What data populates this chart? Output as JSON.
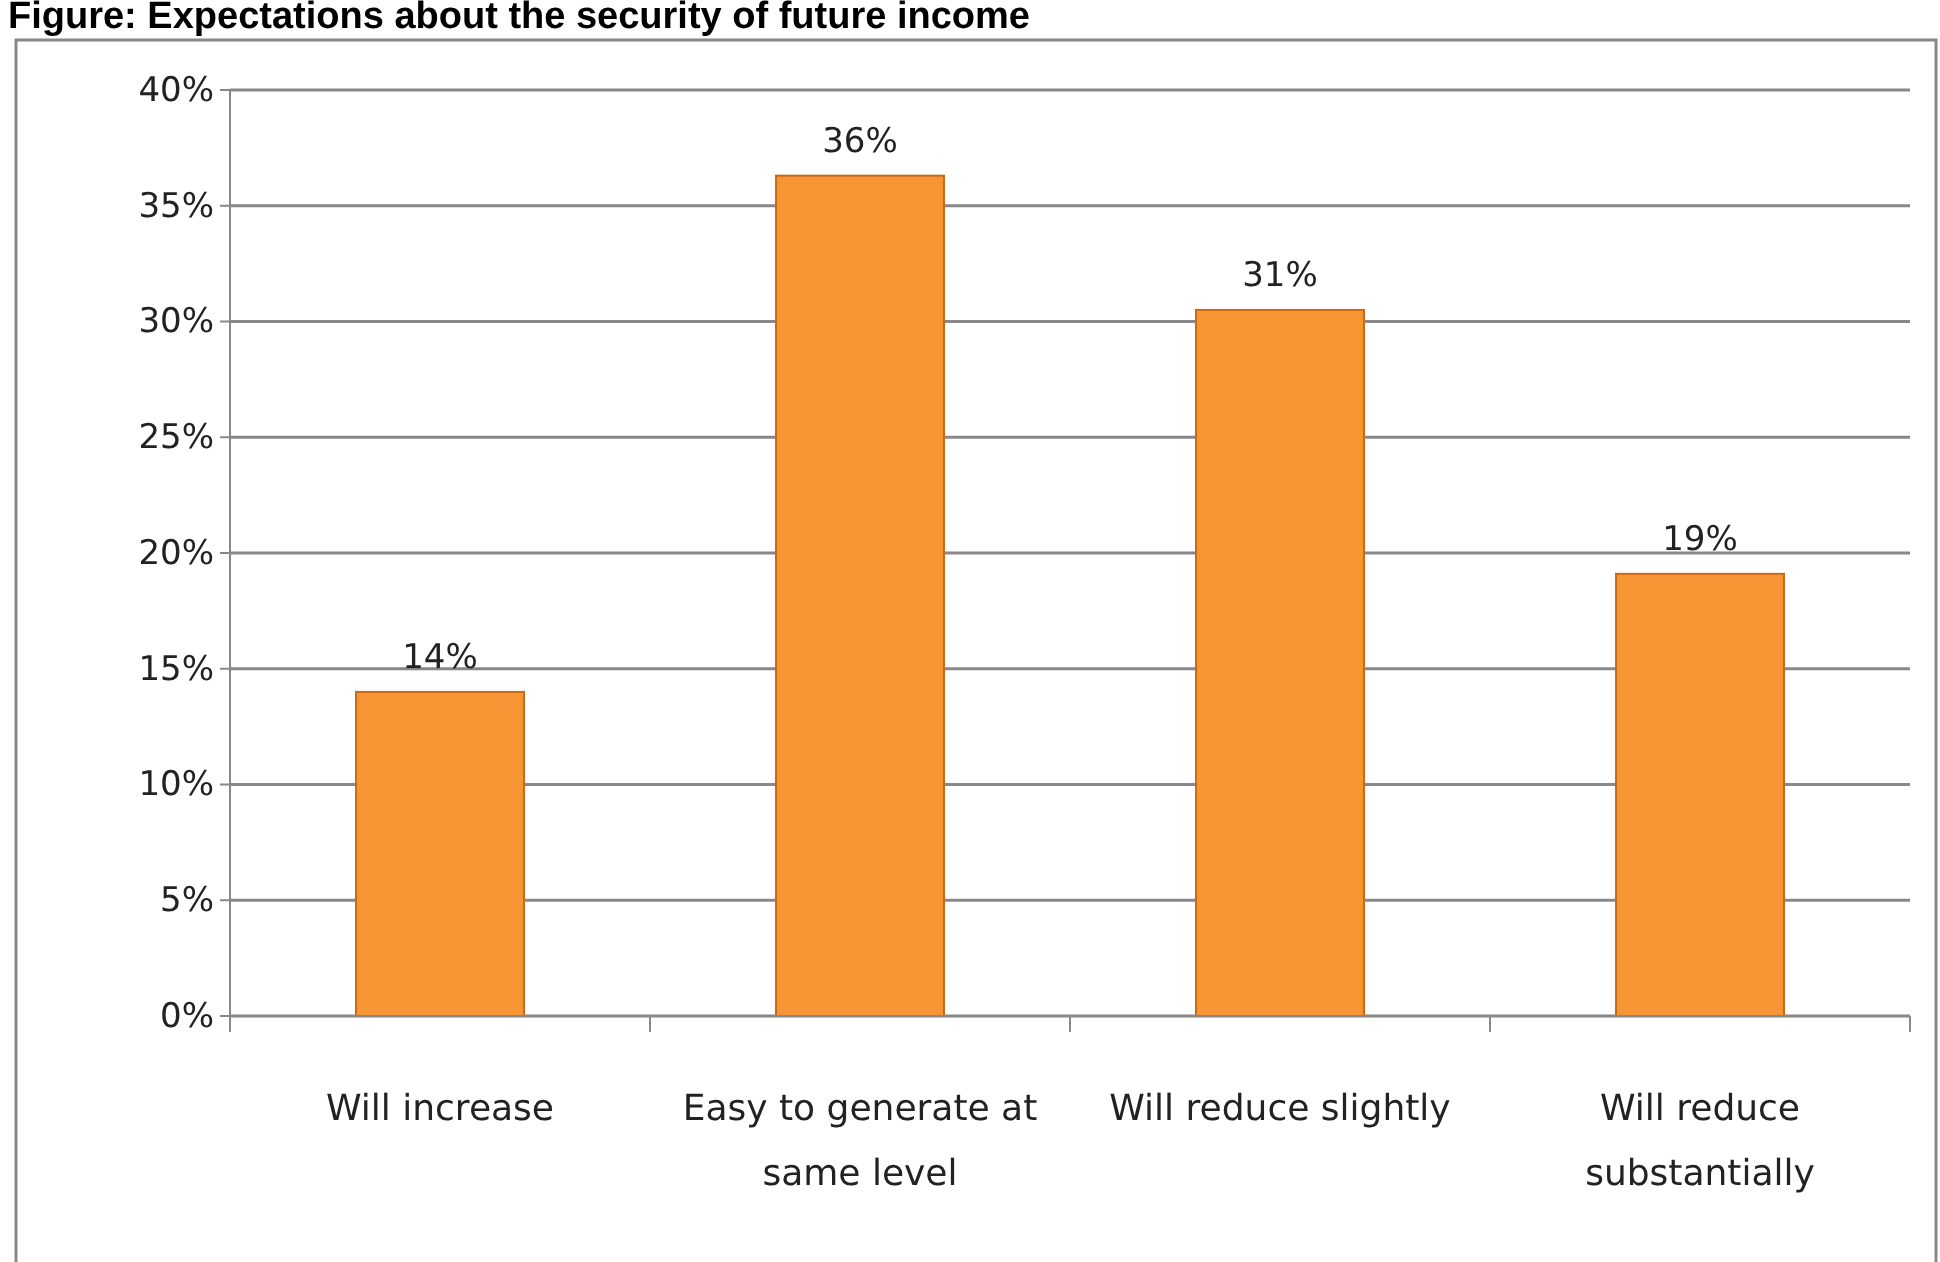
{
  "chart_data": {
    "type": "bar",
    "title": "Figure: Expectations about the security of future income",
    "categories": [
      "Will increase",
      "Easy to generate at same level",
      "Will reduce slightly",
      "Will reduce substantially"
    ],
    "values": [
      14,
      36.3,
      30.5,
      19.1
    ],
    "value_labels": [
      "14%",
      "36%",
      "31%",
      "19%"
    ],
    "color": "#f79433",
    "ylim": [
      0,
      40
    ],
    "yticks": [
      {
        "value": 0,
        "label": "0%"
      },
      {
        "value": 5,
        "label": "5%"
      },
      {
        "value": 10,
        "label": "10%"
      },
      {
        "value": 15,
        "label": "15%"
      },
      {
        "value": 20,
        "label": "20%"
      },
      {
        "value": 25,
        "label": "25%"
      },
      {
        "value": 30,
        "label": "30%"
      },
      {
        "value": 35,
        "label": "35%"
      },
      {
        "value": 40,
        "label": "40%"
      }
    ],
    "grid": "y"
  }
}
